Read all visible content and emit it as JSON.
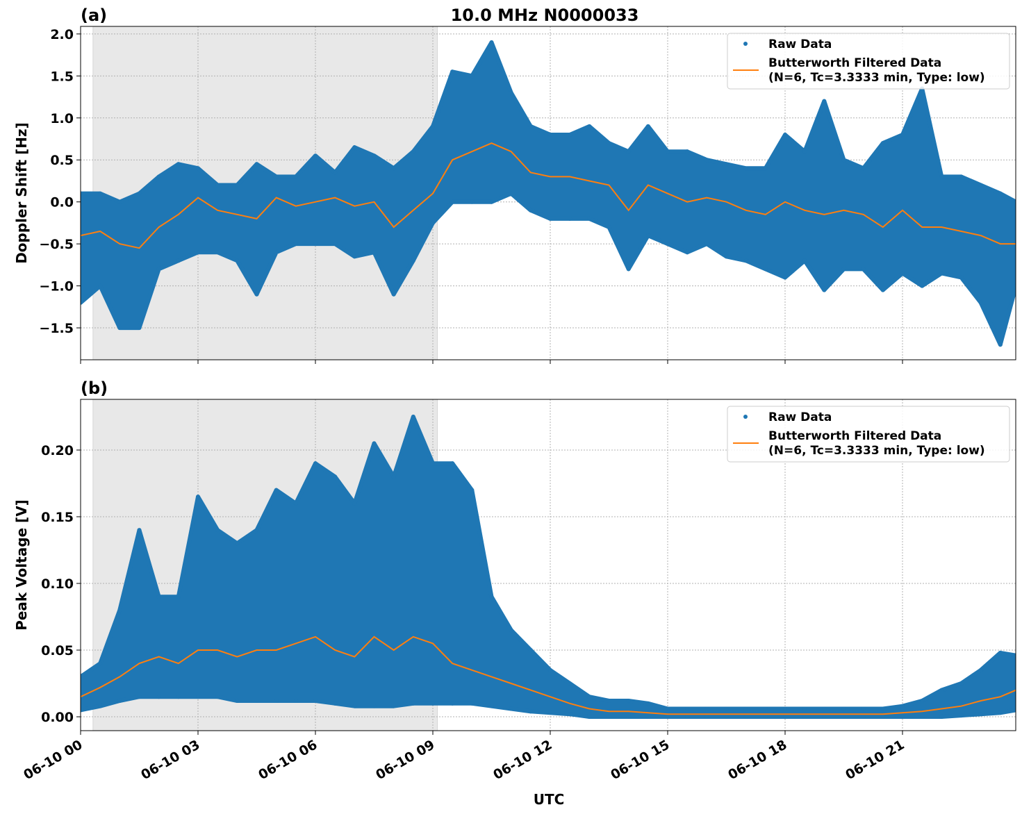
{
  "title": "10.0 MHz N0000033",
  "xlabel": "UTC",
  "x_tick_labels": [
    "06-10 00",
    "06-10 03",
    "06-10 06",
    "06-10 09",
    "06-10 12",
    "06-10 15",
    "06-10 18",
    "06-10 21"
  ],
  "colors": {
    "raw": "#1f77b4",
    "filtered": "#ff7f0e",
    "shade": "#e8e8e8"
  },
  "chart_data": [
    {
      "type": "scatter",
      "panel_label": "(a)",
      "ylabel": "Doppler Shift [Hz]",
      "ylim": [
        -1.88,
        2.09
      ],
      "yticks": [
        -1.5,
        -1.0,
        -0.5,
        0.0,
        0.5,
        1.0,
        1.5,
        2.0
      ],
      "y_tick_labels": [
        "−1.5",
        "−1.0",
        "−0.5",
        "0.0",
        "0.5",
        "1.0",
        "1.5",
        "2.0"
      ],
      "xlim": [
        "06-10 00:00",
        "06-10 23:54"
      ],
      "grid": true,
      "legend_placement": "top-right",
      "shaded_x_range": [
        "00:19",
        "09:07"
      ],
      "x": [
        "00:00",
        "00:30",
        "01:00",
        "01:30",
        "02:00",
        "02:30",
        "03:00",
        "03:30",
        "04:00",
        "04:30",
        "05:00",
        "05:30",
        "06:00",
        "06:30",
        "07:00",
        "07:30",
        "08:00",
        "08:30",
        "09:00",
        "09:30",
        "10:00",
        "10:30",
        "11:00",
        "11:30",
        "12:00",
        "12:30",
        "13:00",
        "13:30",
        "14:00",
        "14:30",
        "15:00",
        "15:30",
        "16:00",
        "16:30",
        "17:00",
        "17:30",
        "18:00",
        "18:30",
        "19:00",
        "19:30",
        "20:00",
        "20:30",
        "21:00",
        "21:30",
        "22:00",
        "22:30",
        "23:00",
        "23:30",
        "23:54"
      ],
      "series": [
        {
          "name": "Raw Data",
          "kind": "scatter-envelope",
          "max": [
            0.1,
            0.1,
            0.0,
            0.1,
            0.3,
            0.45,
            0.4,
            0.2,
            0.2,
            0.45,
            0.3,
            0.3,
            0.55,
            0.35,
            0.65,
            0.55,
            0.4,
            0.6,
            0.9,
            1.55,
            1.5,
            1.9,
            1.3,
            0.9,
            0.8,
            0.8,
            0.9,
            0.7,
            0.6,
            0.9,
            0.6,
            0.6,
            0.5,
            0.45,
            0.4,
            0.4,
            0.8,
            0.6,
            1.2,
            0.5,
            0.4,
            0.7,
            0.8,
            1.35,
            0.3,
            0.3,
            0.2,
            0.1,
            0.0
          ],
          "min": [
            -1.2,
            -1.0,
            -1.5,
            -1.5,
            -0.8,
            -0.7,
            -0.6,
            -0.6,
            -0.7,
            -1.1,
            -0.6,
            -0.5,
            -0.5,
            -0.5,
            -0.65,
            -0.6,
            -1.1,
            -0.7,
            -0.25,
            0.0,
            0.0,
            0.0,
            0.1,
            -0.1,
            -0.2,
            -0.2,
            -0.2,
            -0.3,
            -0.8,
            -0.4,
            -0.5,
            -0.6,
            -0.5,
            -0.65,
            -0.7,
            -0.8,
            -0.9,
            -0.7,
            -1.05,
            -0.8,
            -0.8,
            -1.05,
            -0.85,
            -1.0,
            -0.85,
            -0.9,
            -1.2,
            -1.7,
            -1.0
          ]
        },
        {
          "name": "Butterworth Filtered Data\n(N=6, Tc=3.3333 min, Type: low)",
          "kind": "line",
          "values": [
            -0.4,
            -0.35,
            -0.5,
            -0.55,
            -0.3,
            -0.15,
            0.05,
            -0.1,
            -0.15,
            -0.2,
            0.05,
            -0.05,
            0.0,
            0.05,
            -0.05,
            0.0,
            -0.3,
            -0.1,
            0.1,
            0.5,
            0.6,
            0.7,
            0.6,
            0.35,
            0.3,
            0.3,
            0.25,
            0.2,
            -0.1,
            0.2,
            0.1,
            0.0,
            0.05,
            0.0,
            -0.1,
            -0.15,
            0.0,
            -0.1,
            -0.15,
            -0.1,
            -0.15,
            -0.3,
            -0.1,
            -0.3,
            -0.3,
            -0.35,
            -0.4,
            -0.5,
            -0.5
          ]
        }
      ],
      "legend": [
        "Raw Data",
        "Butterworth Filtered Data",
        "(N=6, Tc=3.3333 min, Type: low)"
      ]
    },
    {
      "type": "scatter",
      "panel_label": "(b)",
      "ylabel": "Peak Voltage [V]",
      "ylim": [
        -0.0104,
        0.238
      ],
      "yticks": [
        0.0,
        0.05,
        0.1,
        0.15,
        0.2
      ],
      "y_tick_labels": [
        "0.00",
        "0.05",
        "0.10",
        "0.15",
        "0.20"
      ],
      "xlim": [
        "06-10 00:00",
        "06-10 23:54"
      ],
      "grid": true,
      "legend_placement": "top-right",
      "shaded_x_range": [
        "00:19",
        "09:07"
      ],
      "x": [
        "00:00",
        "00:30",
        "01:00",
        "01:30",
        "02:00",
        "02:30",
        "03:00",
        "03:30",
        "04:00",
        "04:30",
        "05:00",
        "05:30",
        "06:00",
        "06:30",
        "07:00",
        "07:30",
        "08:00",
        "08:30",
        "09:00",
        "09:30",
        "10:00",
        "10:30",
        "11:00",
        "11:30",
        "12:00",
        "12:30",
        "13:00",
        "13:30",
        "14:00",
        "14:30",
        "15:00",
        "15:30",
        "16:00",
        "16:30",
        "17:00",
        "17:30",
        "18:00",
        "18:30",
        "19:00",
        "19:30",
        "20:00",
        "20:30",
        "21:00",
        "21:30",
        "22:00",
        "22:30",
        "23:00",
        "23:30",
        "23:54"
      ],
      "series": [
        {
          "name": "Raw Data",
          "kind": "scatter-envelope",
          "max": [
            0.03,
            0.04,
            0.08,
            0.14,
            0.09,
            0.09,
            0.165,
            0.14,
            0.13,
            0.14,
            0.17,
            0.16,
            0.19,
            0.18,
            0.16,
            0.205,
            0.18,
            0.225,
            0.19,
            0.19,
            0.17,
            0.09,
            0.065,
            0.05,
            0.035,
            0.025,
            0.015,
            0.012,
            0.012,
            0.01,
            0.006,
            0.006,
            0.006,
            0.006,
            0.006,
            0.006,
            0.006,
            0.006,
            0.006,
            0.006,
            0.006,
            0.006,
            0.008,
            0.012,
            0.02,
            0.025,
            0.035,
            0.048,
            0.046
          ],
          "min": [
            0.005,
            0.008,
            0.012,
            0.015,
            0.015,
            0.015,
            0.015,
            0.015,
            0.012,
            0.012,
            0.012,
            0.012,
            0.012,
            0.01,
            0.008,
            0.008,
            0.008,
            0.01,
            0.01,
            0.01,
            0.01,
            0.008,
            0.006,
            0.004,
            0.003,
            0.002,
            0.0,
            0.0,
            0.0,
            0.0,
            0.0,
            0.0,
            0.0,
            0.0,
            0.0,
            0.0,
            0.0,
            0.0,
            0.0,
            0.0,
            0.0,
            0.0,
            0.0,
            0.0,
            0.0,
            0.001,
            0.002,
            0.003,
            0.005
          ]
        },
        {
          "name": "Butterworth Filtered Data\n(N=6, Tc=3.3333 min, Type: low)",
          "kind": "line",
          "values": [
            0.015,
            0.022,
            0.03,
            0.04,
            0.045,
            0.04,
            0.05,
            0.05,
            0.045,
            0.05,
            0.05,
            0.055,
            0.06,
            0.05,
            0.045,
            0.06,
            0.05,
            0.06,
            0.055,
            0.04,
            0.035,
            0.03,
            0.025,
            0.02,
            0.015,
            0.01,
            0.006,
            0.004,
            0.004,
            0.003,
            0.002,
            0.002,
            0.002,
            0.002,
            0.002,
            0.002,
            0.002,
            0.002,
            0.002,
            0.002,
            0.002,
            0.002,
            0.003,
            0.004,
            0.006,
            0.008,
            0.012,
            0.015,
            0.02
          ]
        }
      ],
      "legend": [
        "Raw Data",
        "Butterworth Filtered Data",
        "(N=6, Tc=3.3333 min, Type: low)"
      ]
    }
  ]
}
